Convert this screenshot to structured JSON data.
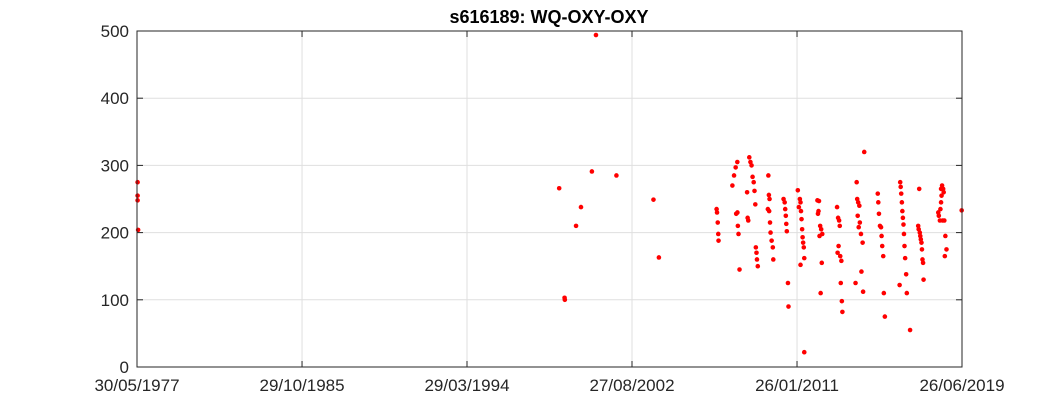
{
  "chart_data": {
    "type": "scatter",
    "title": "s616189: WQ-OXY-OXY",
    "xlabel": "",
    "ylabel": "",
    "x_axis_type": "date",
    "xlim": [
      "1977-05-30",
      "2019-06-26"
    ],
    "ylim": [
      0,
      500
    ],
    "x_ticks": [
      "1977-05-30",
      "1985-10-29",
      "1994-03-29",
      "2002-08-27",
      "2011-01-26",
      "2019-06-26"
    ],
    "x_tick_labels": [
      "30/05/1977",
      "29/10/1985",
      "29/03/1994",
      "27/08/2002",
      "26/01/2011",
      "26/06/2019"
    ],
    "y_ticks": [
      0,
      100,
      200,
      300,
      400,
      500
    ],
    "y_tick_labels": [
      "0",
      "100",
      "200",
      "300",
      "400",
      "500"
    ],
    "grid": true,
    "marker_color": "#ff0000",
    "series": [
      {
        "points": [
          [
            "1977-06-10",
            275
          ],
          [
            "1977-06-10",
            255
          ],
          [
            "1977-06-10",
            248
          ],
          [
            "1977-06-20",
            204
          ],
          [
            "1998-12-10",
            266
          ],
          [
            "1999-03-20",
            103
          ],
          [
            "1999-03-25",
            100
          ],
          [
            "1999-10-20",
            210
          ],
          [
            "2000-01-20",
            238
          ],
          [
            "2000-08-10",
            291
          ],
          [
            "2000-10-25",
            494
          ],
          [
            "2001-11-10",
            285
          ],
          [
            "2003-10-01",
            249
          ],
          [
            "2004-01-10",
            163
          ],
          [
            "2006-12-20",
            235
          ],
          [
            "2006-12-28",
            230
          ],
          [
            "2007-01-10",
            215
          ],
          [
            "2007-01-20",
            198
          ],
          [
            "2007-01-25",
            188
          ],
          [
            "2007-10-10",
            270
          ],
          [
            "2007-11-10",
            285
          ],
          [
            "2007-12-10",
            297
          ],
          [
            "2008-01-10",
            305
          ],
          [
            "2008-01-12",
            230
          ],
          [
            "2007-12-20",
            228
          ],
          [
            "2008-01-20",
            210
          ],
          [
            "2008-02-01",
            198
          ],
          [
            "2008-02-20",
            145
          ],
          [
            "2008-07-10",
            260
          ],
          [
            "2008-07-20",
            222
          ],
          [
            "2008-08-01",
            218
          ],
          [
            "2008-08-20",
            312
          ],
          [
            "2008-09-10",
            305
          ],
          [
            "2008-10-01",
            300
          ],
          [
            "2008-10-20",
            283
          ],
          [
            "2008-11-10",
            275
          ],
          [
            "2008-11-25",
            262
          ],
          [
            "2008-12-10",
            242
          ],
          [
            "2008-12-20",
            178
          ],
          [
            "2009-01-01",
            170
          ],
          [
            "2009-01-10",
            160
          ],
          [
            "2009-01-25",
            150
          ],
          [
            "2009-08-10",
            285
          ],
          [
            "2009-08-20",
            256
          ],
          [
            "2009-09-01",
            250
          ],
          [
            "2009-08-01",
            235
          ],
          [
            "2009-08-25",
            232
          ],
          [
            "2009-09-10",
            215
          ],
          [
            "2009-09-20",
            200
          ],
          [
            "2009-10-10",
            188
          ],
          [
            "2009-11-01",
            178
          ],
          [
            "2009-11-10",
            160
          ],
          [
            "2010-05-20",
            250
          ],
          [
            "2010-06-10",
            245
          ],
          [
            "2010-06-20",
            235
          ],
          [
            "2010-07-01",
            225
          ],
          [
            "2010-07-10",
            213
          ],
          [
            "2010-07-20",
            202
          ],
          [
            "2010-08-10",
            125
          ],
          [
            "2010-08-20",
            90
          ],
          [
            "2011-02-10",
            263
          ],
          [
            "2011-03-01",
            238
          ],
          [
            "2011-03-20",
            250
          ],
          [
            "2011-04-01",
            245
          ],
          [
            "2011-04-10",
            232
          ],
          [
            "2011-04-20",
            220
          ],
          [
            "2011-05-01",
            205
          ],
          [
            "2011-05-10",
            193
          ],
          [
            "2011-06-01",
            178
          ],
          [
            "2011-05-20",
            185
          ],
          [
            "2011-06-10",
            162
          ],
          [
            "2011-04-01",
            152
          ],
          [
            "2011-06-10",
            22
          ],
          [
            "2012-02-10",
            248
          ],
          [
            "2012-03-01",
            232
          ],
          [
            "2012-03-10",
            247
          ],
          [
            "2012-02-20",
            228
          ],
          [
            "2012-04-01",
            210
          ],
          [
            "2012-03-20",
            195
          ],
          [
            "2012-04-20",
            205
          ],
          [
            "2012-05-10",
            198
          ],
          [
            "2012-05-01",
            155
          ],
          [
            "2012-04-10",
            110
          ],
          [
            "2013-02-10",
            238
          ],
          [
            "2013-03-01",
            222
          ],
          [
            "2013-03-20",
            218
          ],
          [
            "2013-04-01",
            210
          ],
          [
            "2013-03-10",
            180
          ],
          [
            "2013-02-20",
            170
          ],
          [
            "2013-04-10",
            165
          ],
          [
            "2013-05-01",
            158
          ],
          [
            "2013-04-20",
            125
          ],
          [
            "2013-05-10",
            98
          ],
          [
            "2013-05-20",
            82
          ],
          [
            "2014-02-10",
            275
          ],
          [
            "2014-02-20",
            250
          ],
          [
            "2014-03-10",
            245
          ],
          [
            "2014-04-01",
            240
          ],
          [
            "2014-03-01",
            225
          ],
          [
            "2014-04-10",
            215
          ],
          [
            "2014-03-20",
            208
          ],
          [
            "2014-05-01",
            198
          ],
          [
            "2014-06-01",
            185
          ],
          [
            "2014-05-10",
            142
          ],
          [
            "2014-01-20",
            125
          ],
          [
            "2014-06-10",
            112
          ],
          [
            "2014-07-01",
            320
          ],
          [
            "2015-03-10",
            258
          ],
          [
            "2015-03-20",
            245
          ],
          [
            "2015-04-01",
            228
          ],
          [
            "2015-04-20",
            210
          ],
          [
            "2015-05-10",
            208
          ],
          [
            "2015-05-20",
            195
          ],
          [
            "2015-06-01",
            180
          ],
          [
            "2015-06-20",
            165
          ],
          [
            "2015-07-01",
            110
          ],
          [
            "2015-07-20",
            75
          ],
          [
            "2016-05-01",
            275
          ],
          [
            "2016-05-10",
            268
          ],
          [
            "2016-05-20",
            258
          ],
          [
            "2016-06-01",
            245
          ],
          [
            "2016-06-10",
            232
          ],
          [
            "2016-06-20",
            222
          ],
          [
            "2016-07-01",
            212
          ],
          [
            "2016-07-10",
            198
          ],
          [
            "2016-07-20",
            180
          ],
          [
            "2016-08-01",
            162
          ],
          [
            "2016-08-20",
            138
          ],
          [
            "2016-04-20",
            122
          ],
          [
            "2016-09-01",
            110
          ],
          [
            "2016-11-01",
            55
          ],
          [
            "2017-04-20",
            265
          ],
          [
            "2017-04-01",
            210
          ],
          [
            "2017-04-10",
            205
          ],
          [
            "2017-05-01",
            200
          ],
          [
            "2017-05-10",
            195
          ],
          [
            "2017-05-20",
            190
          ],
          [
            "2017-06-01",
            185
          ],
          [
            "2017-06-10",
            175
          ],
          [
            "2017-06-20",
            160
          ],
          [
            "2017-07-01",
            155
          ],
          [
            "2017-07-10",
            130
          ],
          [
            "2018-04-10",
            230
          ],
          [
            "2018-04-20",
            225
          ],
          [
            "2018-06-01",
            265
          ],
          [
            "2018-06-20",
            270
          ],
          [
            "2018-07-10",
            265
          ],
          [
            "2018-07-20",
            260
          ],
          [
            "2018-06-10",
            255
          ],
          [
            "2018-06-01",
            245
          ],
          [
            "2018-05-20",
            235
          ],
          [
            "2018-05-10",
            218
          ],
          [
            "2018-07-01",
            218
          ],
          [
            "2018-08-01",
            218
          ],
          [
            "2018-08-20",
            195
          ],
          [
            "2018-09-10",
            175
          ],
          [
            "2018-08-10",
            165
          ],
          [
            "2019-06-20",
            233
          ]
        ]
      }
    ]
  }
}
